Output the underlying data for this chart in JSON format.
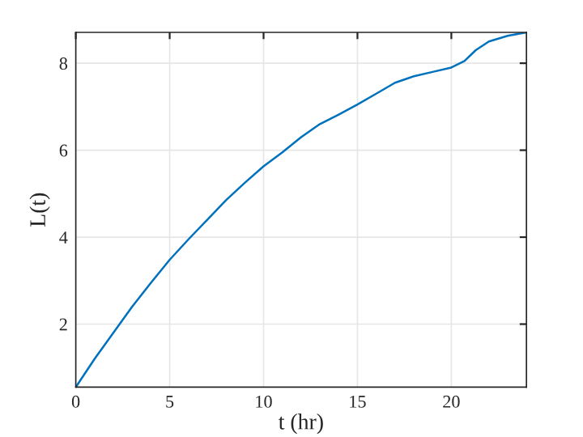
{
  "chart_data": {
    "type": "line",
    "xlabel": "t (hr)",
    "ylabel": "L(t)",
    "x": [
      0,
      1,
      2,
      3,
      4,
      5,
      6,
      7,
      8,
      9,
      10,
      11,
      12,
      13,
      14,
      15,
      16,
      17,
      18,
      19,
      20,
      20.7,
      21.3,
      22,
      23,
      24
    ],
    "series": [
      {
        "color": "#0072bd",
        "values": [
          0.55,
          1.2,
          1.8,
          2.4,
          2.95,
          3.48,
          3.95,
          4.4,
          4.85,
          5.25,
          5.63,
          5.95,
          6.3,
          6.6,
          6.82,
          7.05,
          7.3,
          7.55,
          7.7,
          7.8,
          7.9,
          8.05,
          8.3,
          8.5,
          8.63,
          8.71
        ]
      }
    ],
    "xlim": [
      0,
      24
    ],
    "ylim": [
      0.55,
      8.71
    ],
    "xticks": [
      0,
      5,
      10,
      15,
      20
    ],
    "yticks": [
      2,
      4,
      6,
      8
    ],
    "grid": true,
    "marker": "none",
    "line_style": "solid"
  }
}
